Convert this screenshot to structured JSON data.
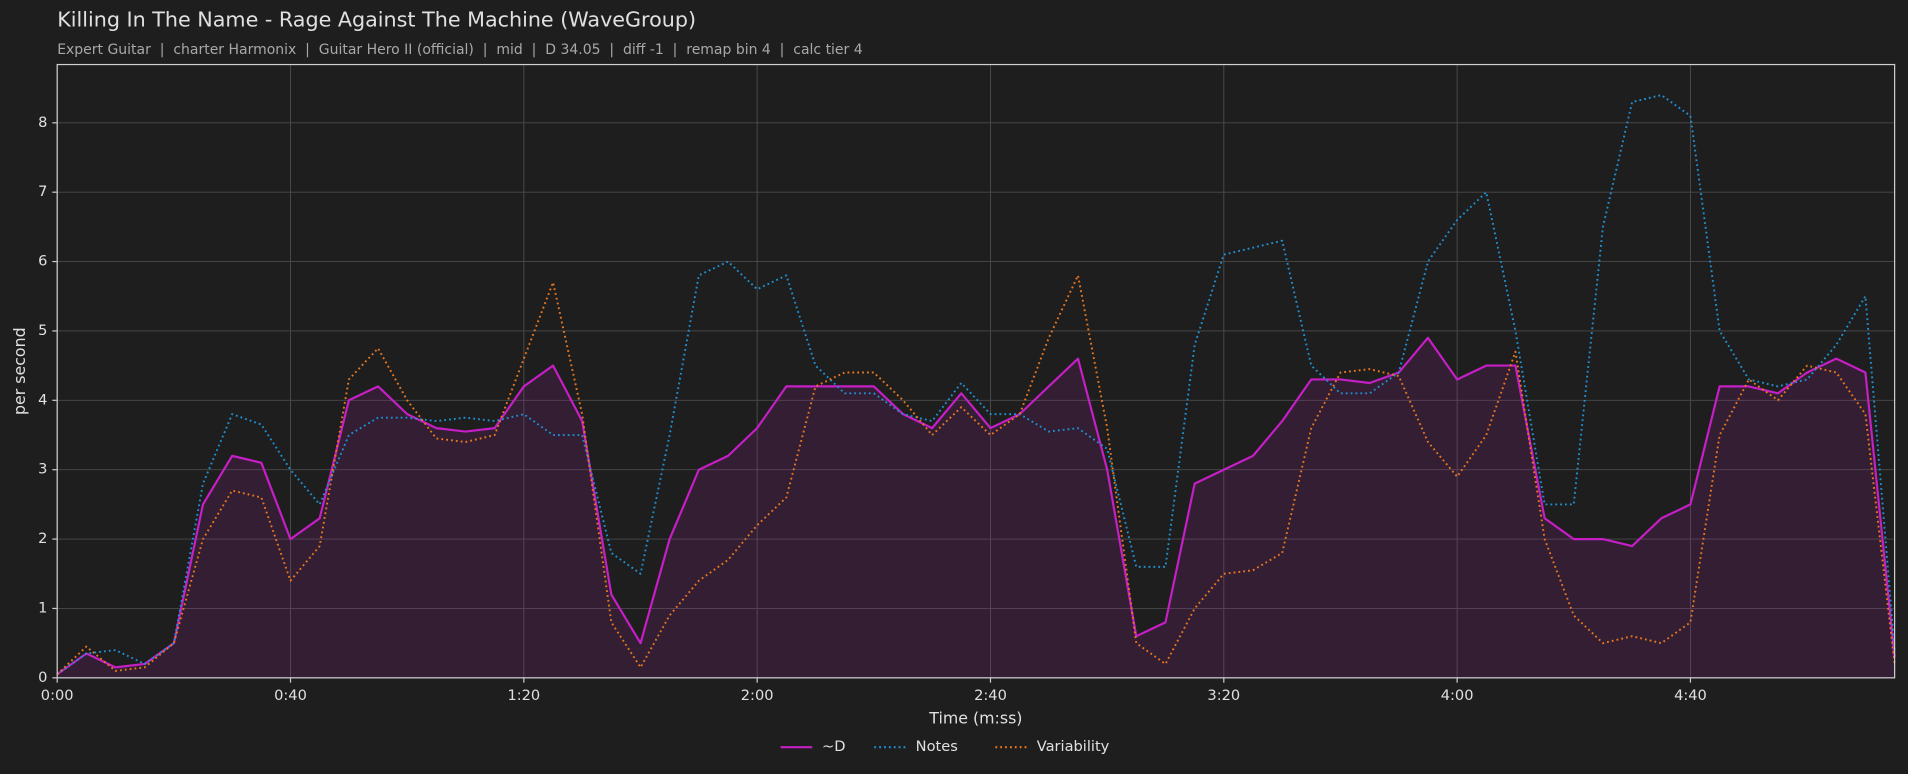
{
  "chart_data": {
    "type": "line",
    "title": "Killing In The Name - Rage Against The Machine (WaveGroup)",
    "subtitle": "Expert Guitar  |  charter Harmonix  |  Guitar Hero II (official)  |  mid  |  D 34.05  |  diff -1  |  remap bin 4  |  calc tier 4",
    "x_label": "Time (m:ss)",
    "y_label": "per second",
    "x": [
      0,
      5,
      10,
      15,
      20,
      25,
      30,
      35,
      40,
      45,
      50,
      55,
      60,
      65,
      70,
      75,
      80,
      85,
      90,
      95,
      100,
      105,
      110,
      115,
      120,
      125,
      130,
      135,
      140,
      145,
      150,
      155,
      160,
      165,
      170,
      175,
      180,
      185,
      190,
      195,
      200,
      205,
      210,
      215,
      220,
      225,
      230,
      235,
      240,
      245,
      250,
      255,
      260,
      265,
      270,
      275,
      280,
      285,
      290,
      295,
      300,
      305,
      310,
      315
    ],
    "series": [
      {
        "name": "~D",
        "color": "#c51fc5",
        "style": "solid",
        "fill": true,
        "values": [
          0.05,
          0.35,
          0.15,
          0.2,
          0.5,
          2.5,
          3.2,
          3.1,
          2.0,
          2.3,
          4.0,
          4.2,
          3.8,
          3.6,
          3.55,
          3.6,
          4.2,
          4.5,
          3.7,
          1.2,
          0.5,
          2.0,
          3.0,
          3.2,
          3.6,
          4.2,
          4.2,
          4.2,
          4.2,
          3.8,
          3.6,
          4.1,
          3.6,
          3.8,
          4.2,
          4.6,
          3.0,
          0.6,
          0.8,
          2.8,
          3.0,
          3.2,
          3.7,
          4.3,
          4.3,
          4.25,
          4.4,
          4.9,
          4.3,
          4.5,
          4.5,
          2.3,
          2.0,
          2.0,
          1.9,
          2.3,
          2.5,
          4.2,
          4.2,
          4.1,
          4.4,
          4.6,
          4.4,
          0.3
        ]
      },
      {
        "name": "Notes",
        "color": "#1f8fd0",
        "style": "dotted",
        "fill": false,
        "values": [
          0.05,
          0.35,
          0.4,
          0.2,
          0.5,
          2.8,
          3.8,
          3.65,
          3.0,
          2.5,
          3.5,
          3.75,
          3.75,
          3.7,
          3.75,
          3.7,
          3.8,
          3.5,
          3.5,
          1.8,
          1.5,
          3.5,
          5.8,
          6.0,
          5.6,
          5.8,
          4.5,
          4.1,
          4.1,
          3.8,
          3.7,
          4.25,
          3.8,
          3.8,
          3.55,
          3.6,
          3.3,
          1.6,
          1.6,
          4.8,
          6.1,
          6.2,
          6.3,
          4.5,
          4.1,
          4.1,
          4.4,
          6.0,
          6.6,
          7.0,
          5.0,
          2.5,
          2.5,
          6.5,
          8.3,
          8.4,
          8.1,
          5.0,
          4.3,
          4.2,
          4.3,
          4.8,
          5.5,
          0.4
        ]
      },
      {
        "name": "Variability",
        "color": "#e8761e",
        "style": "dotted",
        "fill": false,
        "values": [
          0.05,
          0.45,
          0.1,
          0.15,
          0.5,
          2.0,
          2.7,
          2.6,
          1.4,
          1.9,
          4.3,
          4.75,
          4.0,
          3.45,
          3.4,
          3.5,
          4.6,
          5.7,
          3.8,
          0.8,
          0.15,
          0.9,
          1.4,
          1.7,
          2.2,
          2.6,
          4.2,
          4.4,
          4.4,
          4.0,
          3.5,
          3.9,
          3.5,
          3.8,
          4.9,
          5.8,
          3.6,
          0.5,
          0.2,
          1.0,
          1.5,
          1.55,
          1.8,
          3.6,
          4.4,
          4.45,
          4.35,
          3.4,
          2.9,
          3.5,
          4.7,
          2.0,
          0.9,
          0.5,
          0.6,
          0.5,
          0.8,
          3.5,
          4.3,
          4.0,
          4.5,
          4.4,
          3.8,
          0.2
        ]
      }
    ],
    "xlim": [
      0,
      315
    ],
    "xticks": [
      {
        "value": 0,
        "label": "0:00"
      },
      {
        "value": 40,
        "label": "0:40"
      },
      {
        "value": 80,
        "label": "1:20"
      },
      {
        "value": 120,
        "label": "2:00"
      },
      {
        "value": 160,
        "label": "2:40"
      },
      {
        "value": 200,
        "label": "3:20"
      },
      {
        "value": 240,
        "label": "4:00"
      },
      {
        "value": 280,
        "label": "4:40"
      }
    ],
    "ylim": [
      0,
      8.84
    ],
    "yticks": [
      0,
      1,
      2,
      3,
      4,
      5,
      6,
      7,
      8
    ],
    "grid": true,
    "legend": "bottom"
  }
}
